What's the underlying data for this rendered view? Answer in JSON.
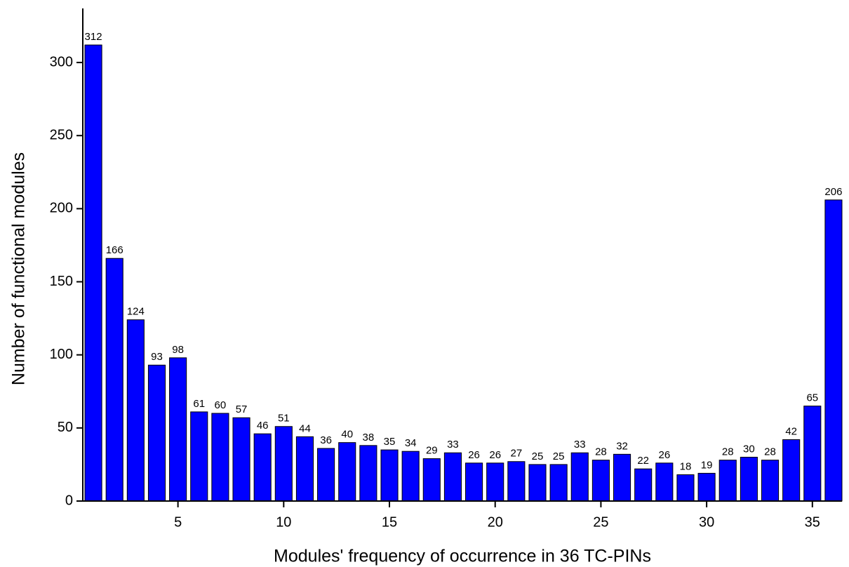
{
  "chart_data": {
    "type": "bar",
    "x_label": "Modules' frequency of  occurrence in 36 TC-PINs",
    "y_label": "Number of functional modules",
    "x": [
      1,
      2,
      3,
      4,
      5,
      6,
      7,
      8,
      9,
      10,
      11,
      12,
      13,
      14,
      15,
      16,
      17,
      18,
      19,
      20,
      21,
      22,
      23,
      24,
      25,
      26,
      27,
      28,
      29,
      30,
      31,
      32,
      33,
      34,
      35,
      36
    ],
    "values": [
      312,
      166,
      124,
      93,
      98,
      61,
      60,
      57,
      46,
      51,
      44,
      36,
      40,
      38,
      35,
      34,
      29,
      33,
      26,
      26,
      27,
      25,
      25,
      33,
      28,
      32,
      22,
      26,
      18,
      19,
      28,
      30,
      28,
      42,
      65,
      206
    ],
    "color": "#0000ff",
    "xlim": [
      0.5,
      36.4
    ],
    "xticks": [
      5,
      10,
      15,
      20,
      25,
      30,
      35
    ],
    "ylim": [
      0,
      337
    ],
    "yticks": [
      0,
      50,
      100,
      150,
      200,
      250,
      300
    ]
  }
}
